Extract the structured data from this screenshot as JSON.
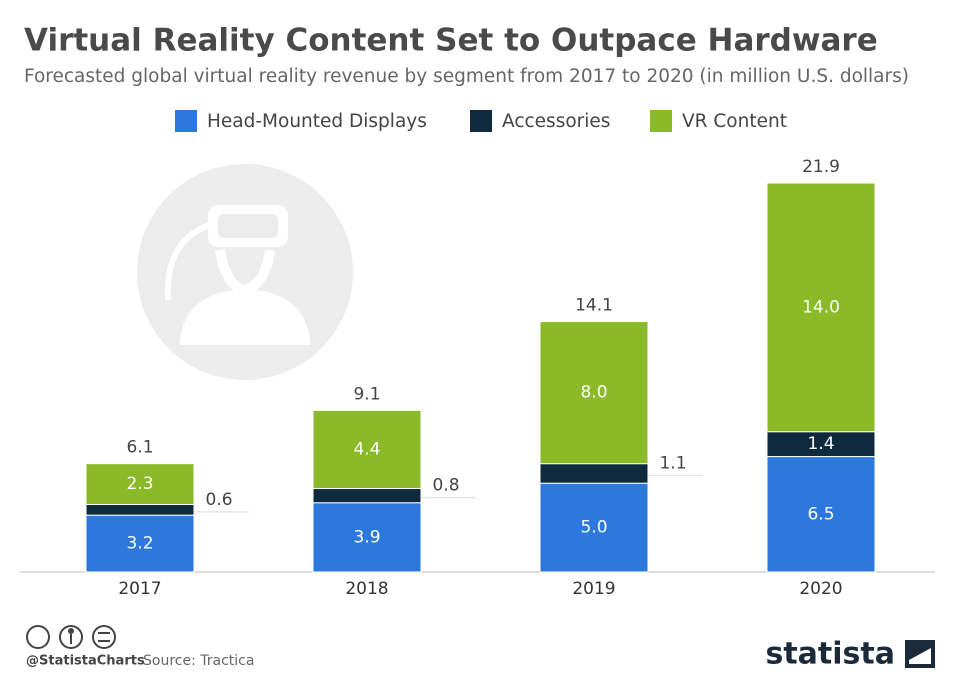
{
  "chart_data": {
    "type": "stacked-bar",
    "title": "Virtual Reality Content Set to Outpace Hardware",
    "subtitle": "Forecasted global virtual reality revenue by segment from 2017 to 2020 (in million U.S. dollars)",
    "categories": [
      "2017",
      "2018",
      "2019",
      "2020"
    ],
    "series": [
      {
        "name": "Head-Mounted Displays",
        "color": "#2d78dc",
        "values": [
          3.2,
          3.9,
          5.0,
          6.5
        ],
        "value_labels": [
          "3.2",
          "3.9",
          "5.0",
          "6.5"
        ]
      },
      {
        "name": "Accessories",
        "color": "#0f2a3c",
        "values": [
          0.6,
          0.8,
          1.1,
          1.4
        ],
        "value_labels": [
          "0.6",
          "0.8",
          "1.1",
          "1.4"
        ]
      },
      {
        "name": "VR Content",
        "color": "#8aba27",
        "values": [
          2.3,
          4.4,
          8.0,
          14.0
        ],
        "value_labels": [
          "2.3",
          "4.4",
          "8.0",
          "14.0"
        ]
      }
    ],
    "totals": [
      6.1,
      9.1,
      14.1,
      21.9
    ]
  },
  "footer": {
    "handle": "@StatistaCharts",
    "source": "Source: Tractica",
    "brand": "statista"
  }
}
